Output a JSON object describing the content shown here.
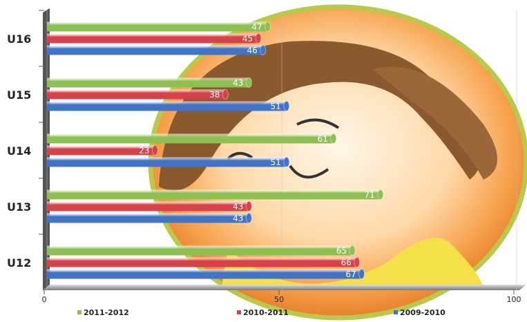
{
  "chart_data": {
    "type": "bar",
    "orientation": "horizontal",
    "categories": [
      "U16",
      "U15",
      "U14",
      "U13",
      "U12"
    ],
    "series": [
      {
        "name": "2011-2012",
        "color": "#8cc152",
        "values": [
          47,
          43,
          61,
          71,
          65
        ]
      },
      {
        "name": "2010-2011",
        "color": "#d9414a",
        "values": [
          45,
          38,
          23,
          43,
          66
        ]
      },
      {
        "name": "2009-2010",
        "color": "#3f74c9",
        "values": [
          46,
          51,
          51,
          43,
          67
        ]
      }
    ],
    "xlim": [
      0,
      100
    ],
    "xticks": [
      0,
      50,
      100
    ],
    "grid": true,
    "legend": "bottom"
  }
}
